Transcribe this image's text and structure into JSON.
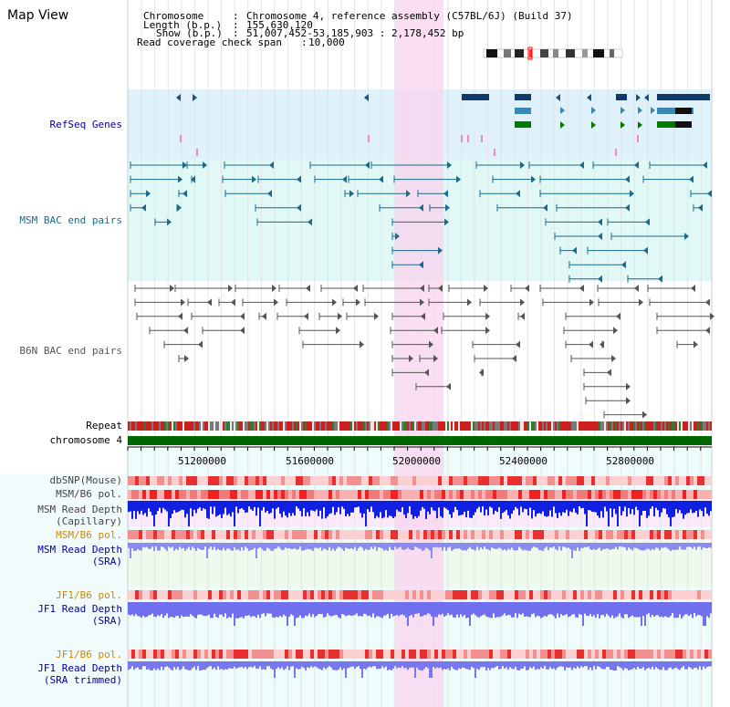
{
  "header": {
    "title": "Map View",
    "chromosome_label": "Chromosome",
    "chromosome_value": "Chromosome 4, reference assembly (C57BL/6J) (Build 37)",
    "length_label": "Length (b.p.)",
    "length_value": "155,630,120",
    "show_label": "Show (b.p.)",
    "show_value": "51,007,452-53,185,903 : 2,178,452 bp",
    "span_label": "Read coverage check span",
    "span_value": "10,000"
  },
  "tracks": {
    "refseq": "RefSeq Genes",
    "msm_bac": "MSM BAC end pairs",
    "b6n_bac": "B6N BAC end pairs",
    "repeat": "Repeat",
    "chromosome": "chromosome 4",
    "dbsnp": "dbSNP(Mouse)",
    "msm_b6_pol": "MSM/B6 pol.",
    "msm_depth_cap_1": "MSM Read Depth",
    "msm_depth_cap_2": "(Capillary)",
    "msm_b6_pol2": "MSM/B6 pol.",
    "msm_depth_sra_1": "MSM Read Depth",
    "msm_depth_sra_2": "(SRA)",
    "jf1_b6_pol": "JF1/B6 pol.",
    "jf1_depth_sra_1": "JF1 Read Depth",
    "jf1_depth_sra_2": "(SRA)",
    "jf1_b6_pol2": "JF1/B6 pol.",
    "jf1_depth_trim_1": "JF1 Read Depth",
    "jf1_depth_trim_2": "(SRA trimmed)"
  },
  "axis": {
    "ticks": [
      "51200000",
      "51600000",
      "52000000",
      "52400000",
      "52800000"
    ]
  },
  "colors": {
    "refseq_bg": "#dff1fa",
    "msm_bg": "#e0f8f6",
    "highlight": "#f9d6ef",
    "chromosome": "#006600",
    "label_blue": "#000099",
    "label_orange": "#cc8800",
    "label_gray": "#444444",
    "msm_line": "#1a6a8a",
    "b6n_line": "#555555"
  }
}
